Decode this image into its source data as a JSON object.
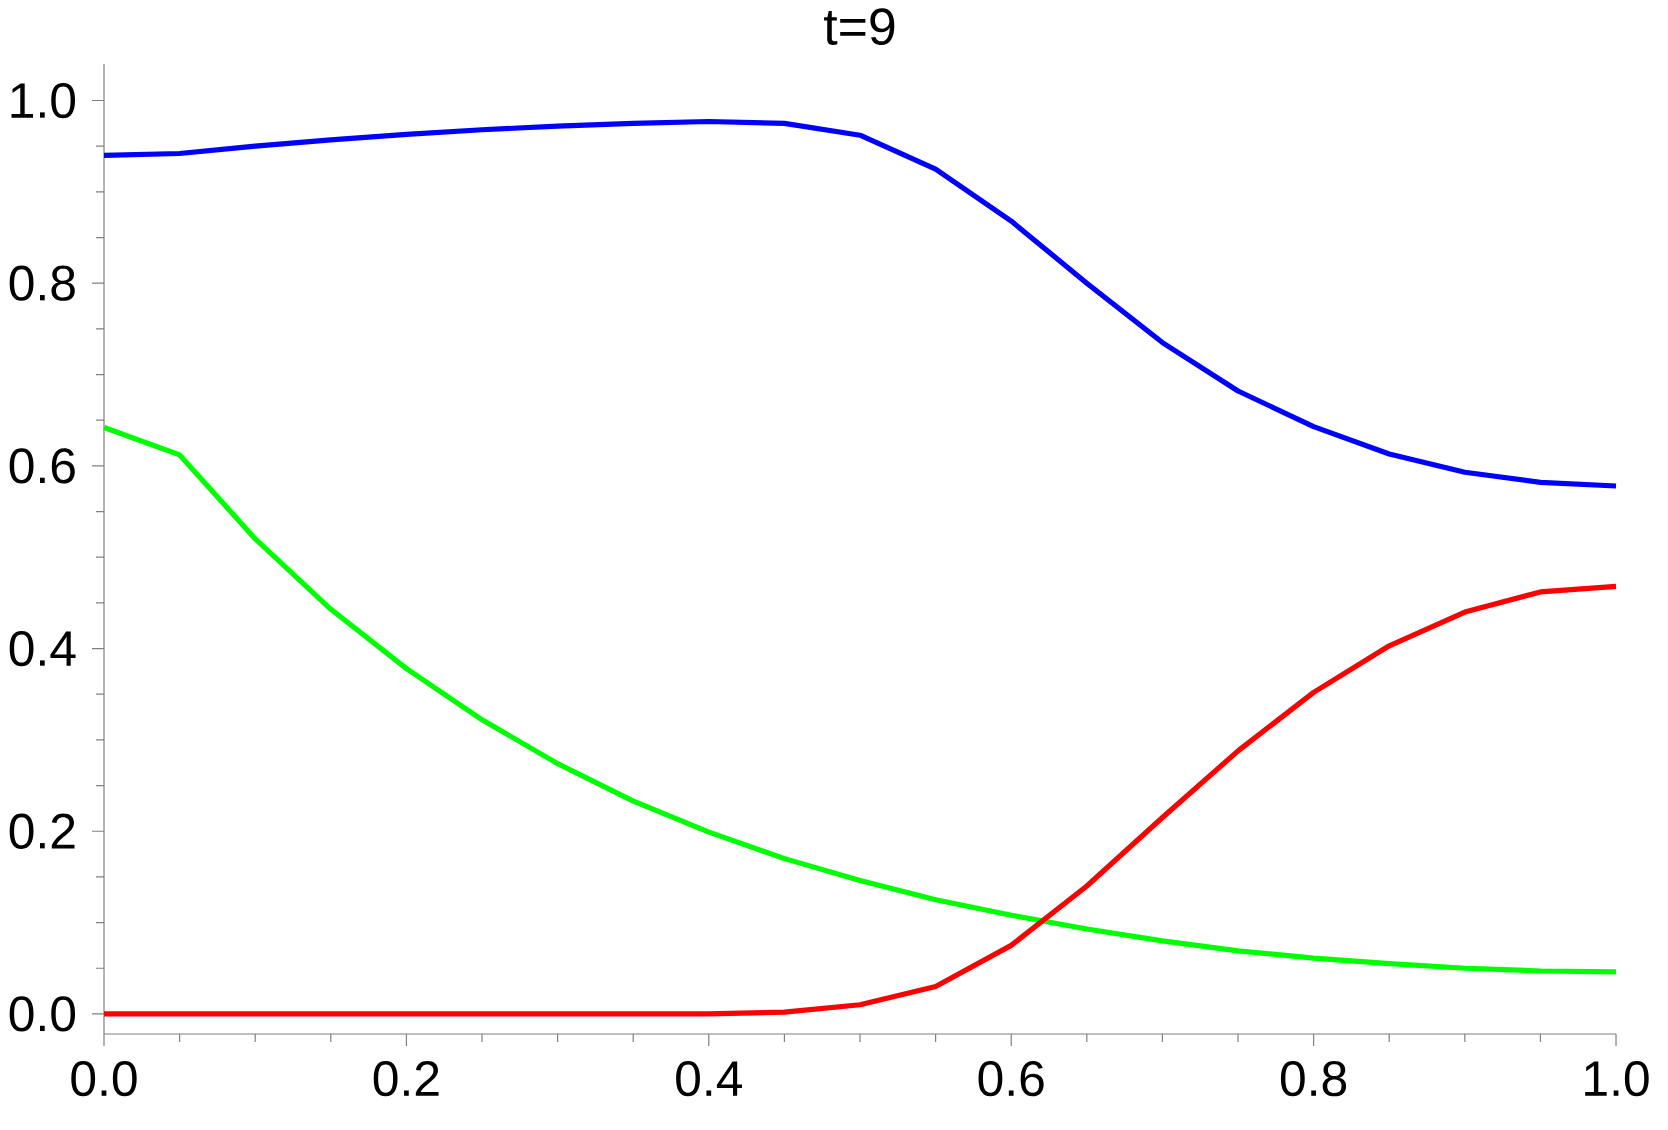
{
  "chart_data": {
    "type": "line",
    "title": "t=9",
    "x": [
      0,
      0.05,
      0.1,
      0.15,
      0.2,
      0.25,
      0.3,
      0.35,
      0.4,
      0.45,
      0.5,
      0.55,
      0.6,
      0.65,
      0.7,
      0.75,
      0.8,
      0.85,
      0.9,
      0.95,
      1.0
    ],
    "series": [
      {
        "color": "#0000ff",
        "values": [
          0.94,
          0.942,
          0.95,
          0.957,
          0.963,
          0.968,
          0.972,
          0.975,
          0.977,
          0.975,
          0.962,
          0.925,
          0.868,
          0.8,
          0.735,
          0.682,
          0.643,
          0.613,
          0.593,
          0.582,
          0.578
        ]
      },
      {
        "color": "#00ff00",
        "values": [
          0.642,
          0.612,
          0.52,
          0.443,
          0.378,
          0.322,
          0.274,
          0.233,
          0.199,
          0.17,
          0.146,
          0.125,
          0.108,
          0.093,
          0.08,
          0.069,
          0.061,
          0.055,
          0.05,
          0.047,
          0.046
        ]
      },
      {
        "color": "#ff0000",
        "values": [
          0,
          0,
          0,
          0,
          0,
          0,
          0,
          0,
          0,
          0.002,
          0.01,
          0.03,
          0.075,
          0.14,
          0.215,
          0.288,
          0.352,
          0.403,
          0.44,
          0.462,
          0.468
        ]
      }
    ],
    "xlim": [
      0,
      1.0
    ],
    "ylim": [
      -0.022,
      1.04
    ],
    "xticks": [
      {
        "value": 0,
        "label": "0.0"
      },
      {
        "value": 0.2,
        "label": "0.2"
      },
      {
        "value": 0.4,
        "label": "0.4"
      },
      {
        "value": 0.6,
        "label": "0.6"
      },
      {
        "value": 0.8,
        "label": "0.8"
      },
      {
        "value": 1.0,
        "label": "1.0"
      }
    ],
    "yticks": [
      {
        "value": 0,
        "label": "0.0"
      },
      {
        "value": 0.2,
        "label": "0.2"
      },
      {
        "value": 0.4,
        "label": "0.4"
      },
      {
        "value": 0.6,
        "label": "0.6"
      },
      {
        "value": 0.8,
        "label": "0.8"
      },
      {
        "value": 1.0,
        "label": "1.0"
      }
    ],
    "marker": "none",
    "line_style": "solid"
  }
}
